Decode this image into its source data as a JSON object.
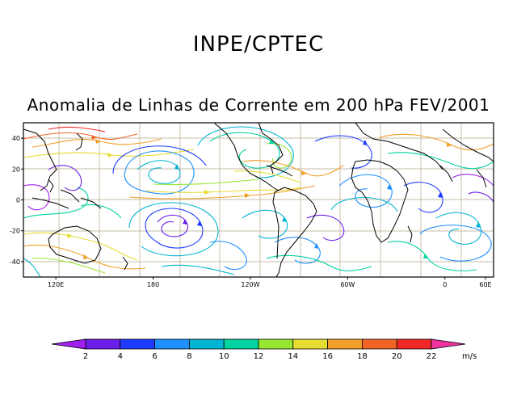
{
  "header": {
    "title": "INPE/CPTEC",
    "subtitle": "Anomalia de Linhas de Corrente em 200 hPa FEV/2001"
  },
  "map": {
    "lat_range": [
      -50,
      50
    ],
    "lon_range": [
      100,
      390
    ],
    "lat_ticks": [
      {
        "value": 40,
        "label": "40"
      },
      {
        "value": 20,
        "label": "20"
      },
      {
        "value": 0,
        "label": "0"
      },
      {
        "value": -20,
        "label": "-20"
      },
      {
        "value": -40,
        "label": "-40"
      }
    ],
    "lon_ticks": [
      {
        "value": 120,
        "label": "120E"
      },
      {
        "value": 180,
        "label": "180"
      },
      {
        "value": 240,
        "label": "120W"
      },
      {
        "value": 300,
        "label": "60W"
      },
      {
        "value": 360,
        "label": "0"
      },
      {
        "value": 420,
        "label": "60E"
      }
    ]
  },
  "colorbar": {
    "unit": "m/s",
    "labels": [
      "2",
      "4",
      "6",
      "8",
      "10",
      "12",
      "14",
      "16",
      "18",
      "20",
      "22"
    ],
    "colors": [
      "#a020f0",
      "#6a1ee8",
      "#1e3cff",
      "#1e90ff",
      "#00b4d2",
      "#00d2a0",
      "#96e632",
      "#e6dc32",
      "#f0a028",
      "#f06428",
      "#f02828",
      "#f032a0"
    ]
  }
}
